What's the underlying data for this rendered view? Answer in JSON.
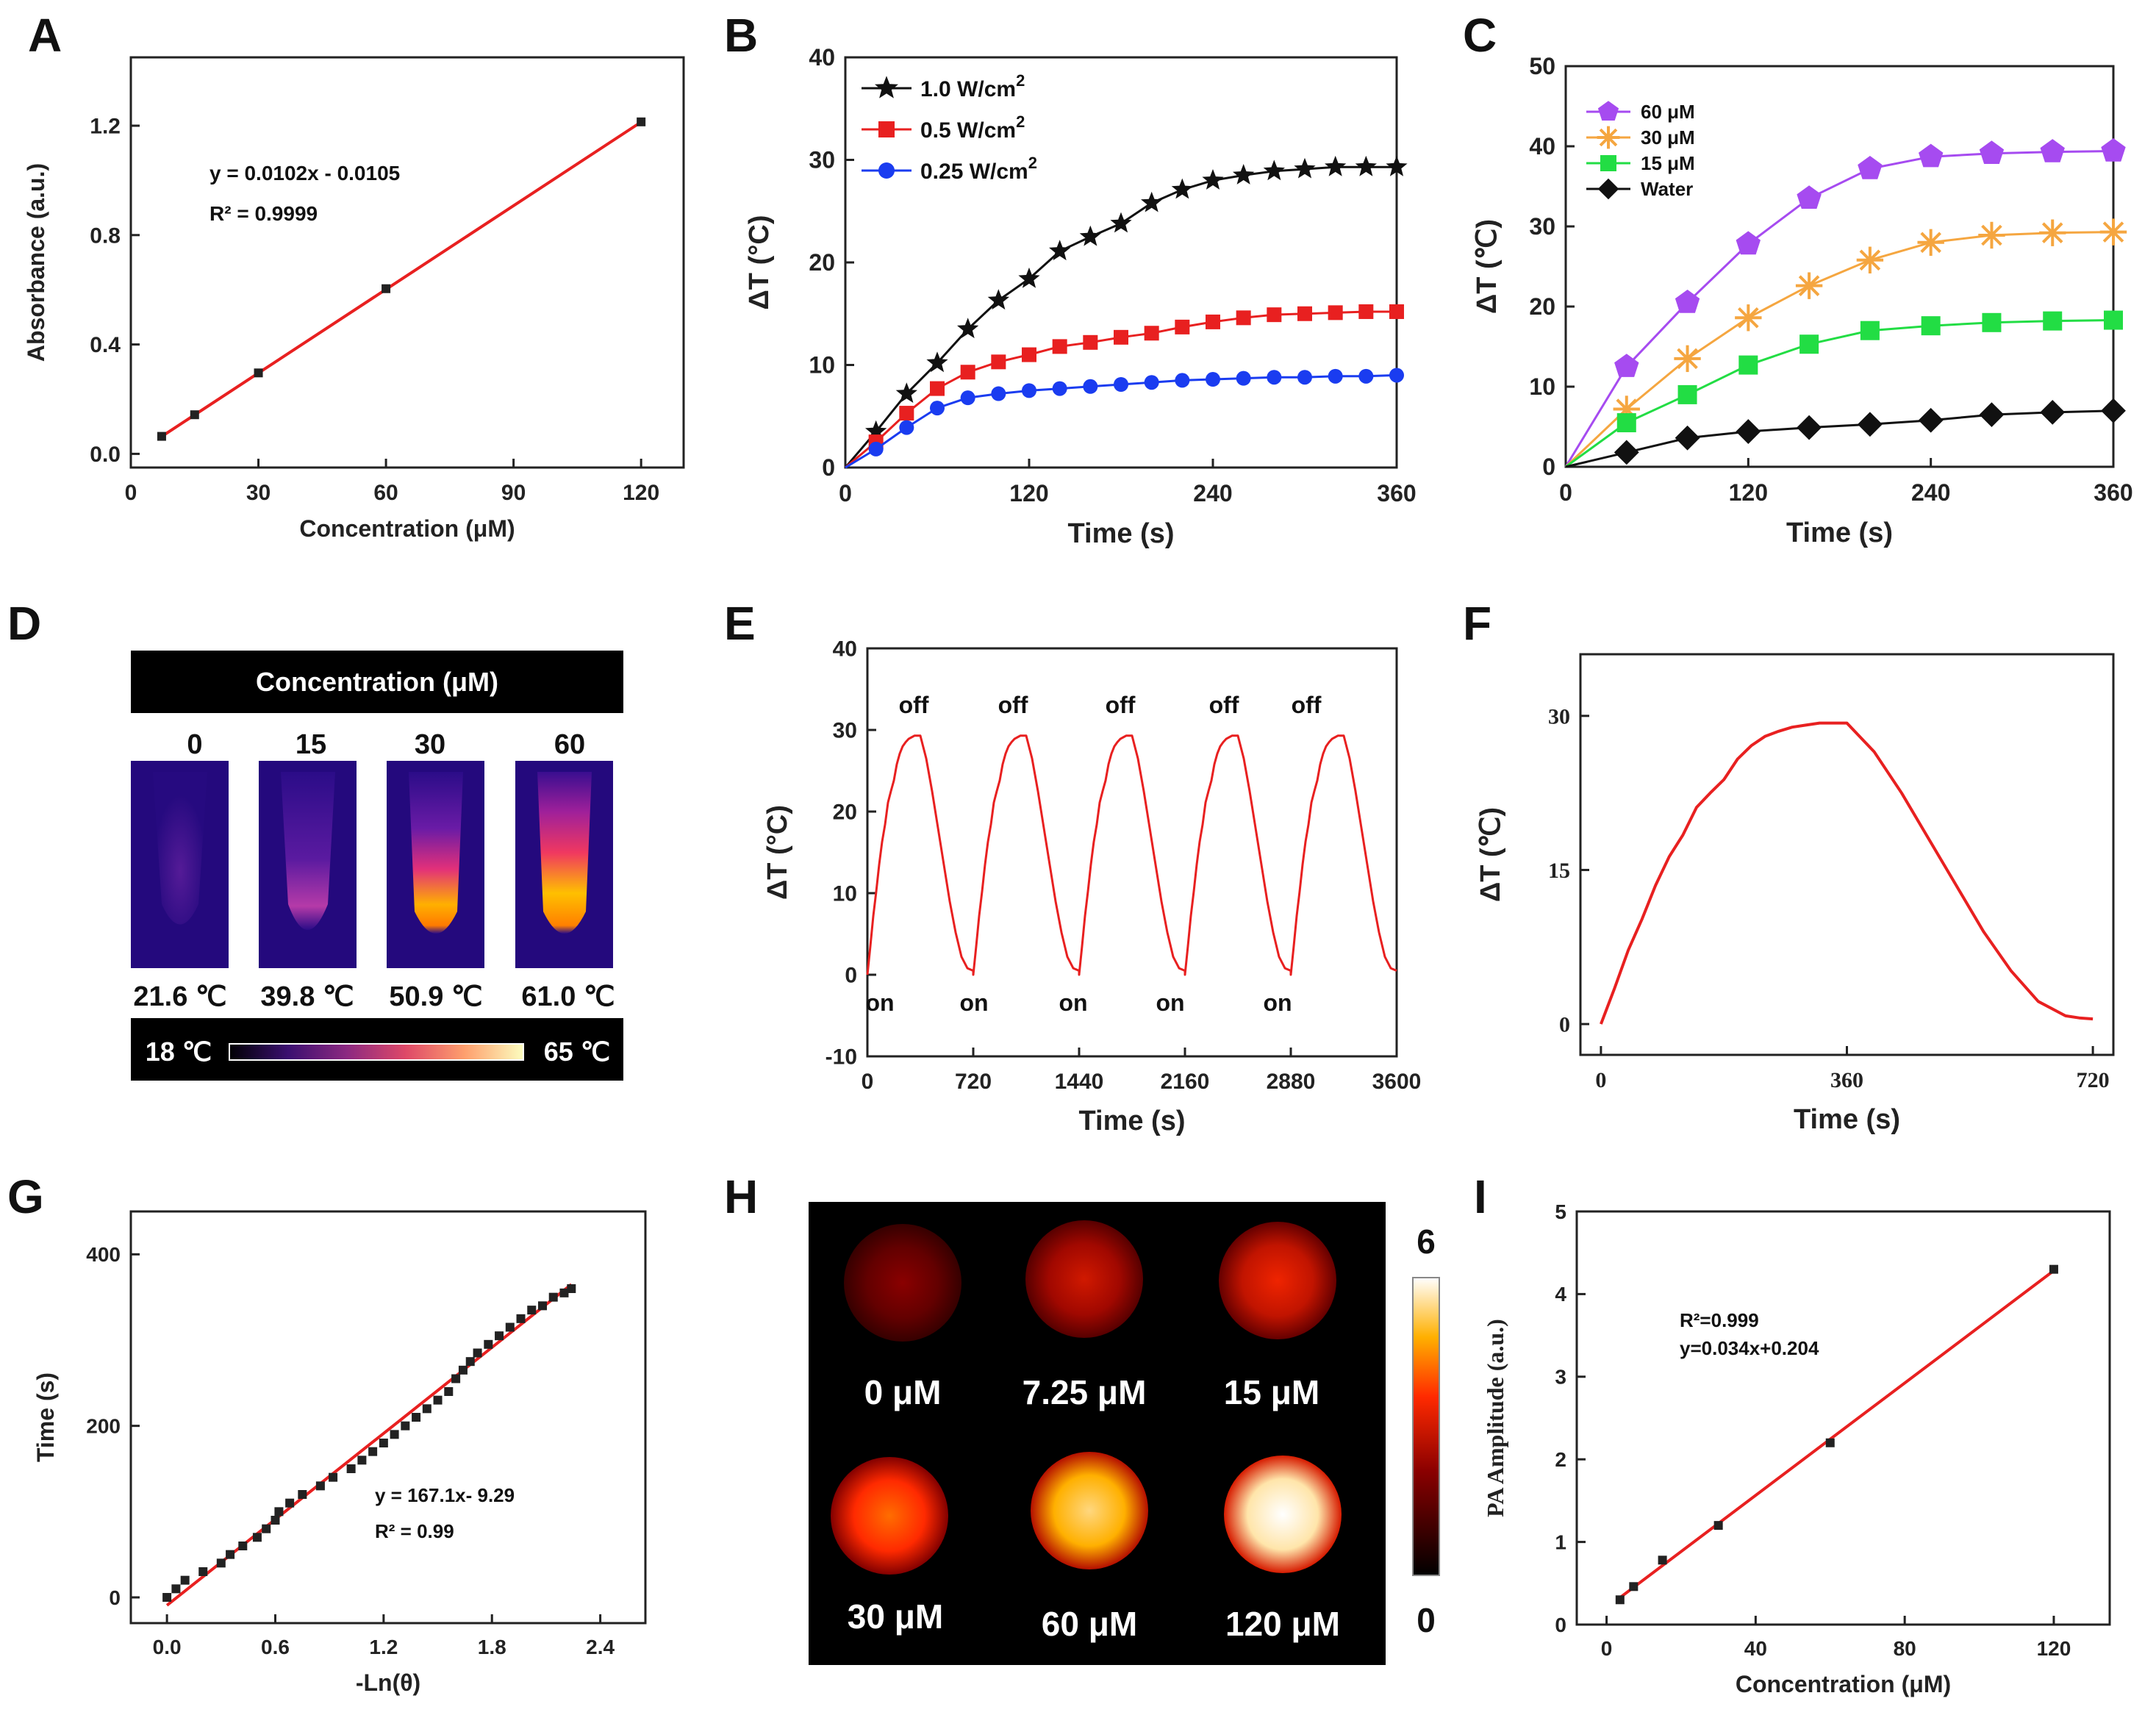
{
  "colors": {
    "black": "#111111",
    "red": "#e82020",
    "blue": "#1a3cf0",
    "purple": "#a64bf0",
    "orange": "#f5a640",
    "green": "#22dd44"
  },
  "chart_data": [
    {
      "id": "A",
      "type": "scatter",
      "panel": "A",
      "title": "",
      "xlabel": "Concentration (μM)",
      "ylabel": "Absorbance (a.u.)",
      "xlim": [
        0,
        130
      ],
      "ylim": [
        -0.05,
        1.45
      ],
      "xticks": [
        0,
        30,
        60,
        90,
        120
      ],
      "yticks": [
        0.0,
        0.4,
        0.8,
        1.2
      ],
      "xtick_labels": [
        "0",
        "30",
        "60",
        "90",
        "120"
      ],
      "ytick_labels": [
        "0.0",
        "0.4",
        "0.8",
        "1.2"
      ],
      "series": [
        {
          "name": "data",
          "x": [
            7.25,
            15,
            30,
            60,
            120
          ],
          "y": [
            0.064,
            0.143,
            0.296,
            0.604,
            1.214
          ]
        }
      ],
      "fit": {
        "slope": 0.0102,
        "intercept": -0.0105,
        "x_range": [
          7.25,
          120
        ]
      },
      "annotations": [
        "y = 0.0102x - 0.0105",
        "R² = 0.9999"
      ]
    },
    {
      "id": "B",
      "type": "line",
      "panel": "B",
      "title": "",
      "xlabel": "Time (s)",
      "ylabel": "ΔT (°C)",
      "xlim": [
        0,
        360
      ],
      "ylim": [
        0,
        40
      ],
      "xticks": [
        0,
        120,
        240,
        360
      ],
      "yticks": [
        0,
        10,
        20,
        30,
        40
      ],
      "xtick_labels": [
        "0",
        "120",
        "240",
        "360"
      ],
      "ytick_labels": [
        "0",
        "10",
        "20",
        "30",
        "40"
      ],
      "x": [
        0,
        20,
        40,
        60,
        80,
        100,
        120,
        140,
        160,
        180,
        200,
        220,
        240,
        260,
        280,
        300,
        320,
        340,
        360
      ],
      "series": [
        {
          "name": "1.0 W/cm²",
          "color": "black",
          "marker": "star",
          "values": [
            0,
            3.5,
            7.2,
            10.2,
            13.5,
            16.3,
            18.4,
            21.1,
            22.5,
            23.8,
            25.8,
            27.1,
            28.0,
            28.5,
            28.9,
            29.1,
            29.3,
            29.3,
            29.3
          ]
        },
        {
          "name": "0.5 W/cm²",
          "color": "red",
          "marker": "square",
          "values": [
            0,
            2.5,
            5.3,
            7.7,
            9.3,
            10.3,
            11.0,
            11.8,
            12.2,
            12.7,
            13.1,
            13.7,
            14.2,
            14.6,
            14.9,
            15.0,
            15.1,
            15.2,
            15.2
          ]
        },
        {
          "name": "0.25 W/cm²",
          "color": "blue",
          "marker": "circle",
          "values": [
            0,
            1.8,
            3.9,
            5.8,
            6.8,
            7.2,
            7.5,
            7.7,
            7.9,
            8.1,
            8.3,
            8.5,
            8.6,
            8.7,
            8.8,
            8.8,
            8.9,
            8.9,
            9.0
          ]
        }
      ],
      "legend_labels": [
        "1.0 W/cm",
        "0.5 W/cm",
        "0.25 W/cm"
      ],
      "legend_sup": "2"
    },
    {
      "id": "C",
      "type": "line",
      "panel": "C",
      "title": "",
      "xlabel": "Time (s)",
      "ylabel": "ΔT (℃)",
      "xlim": [
        0,
        360
      ],
      "ylim": [
        0,
        50
      ],
      "xticks": [
        0,
        120,
        240,
        360
      ],
      "yticks": [
        0,
        10,
        20,
        30,
        40,
        50
      ],
      "xtick_labels": [
        "0",
        "120",
        "240",
        "360"
      ],
      "ytick_labels": [
        "0",
        "10",
        "20",
        "30",
        "40",
        "50"
      ],
      "x": [
        0,
        40,
        80,
        120,
        160,
        200,
        240,
        280,
        320,
        360
      ],
      "series": [
        {
          "name": "60 μM",
          "color": "purple",
          "marker": "pentagon",
          "values": [
            0,
            12.5,
            20.5,
            27.8,
            33.5,
            37.2,
            38.7,
            39.1,
            39.3,
            39.4
          ]
        },
        {
          "name": "30 μM",
          "color": "orange",
          "marker": "asterisk",
          "values": [
            0,
            7.2,
            13.5,
            18.6,
            22.6,
            25.8,
            28.0,
            28.9,
            29.2,
            29.3
          ]
        },
        {
          "name": "15 μM",
          "color": "green",
          "marker": "square",
          "values": [
            0,
            5.5,
            9.0,
            12.7,
            15.3,
            17.0,
            17.6,
            18.0,
            18.2,
            18.3
          ]
        },
        {
          "name": "Water",
          "color": "black",
          "marker": "diamond",
          "values": [
            0,
            1.8,
            3.6,
            4.4,
            4.9,
            5.3,
            5.8,
            6.5,
            6.8,
            7.0
          ]
        }
      ]
    },
    {
      "id": "E",
      "type": "line",
      "panel": "E",
      "title": "",
      "xlabel": "Time (s)",
      "ylabel": "ΔT (°C)",
      "xlim": [
        0,
        3600
      ],
      "ylim": [
        -10,
        40
      ],
      "xticks": [
        0,
        720,
        1440,
        2160,
        2880,
        3600
      ],
      "yticks": [
        -10,
        0,
        10,
        20,
        30,
        40
      ],
      "xtick_labels": [
        "0",
        "720",
        "1440",
        "2160",
        "2880",
        "3600"
      ],
      "ytick_labels": [
        "-10",
        "0",
        "10",
        "20",
        "30",
        "40"
      ],
      "cycle_profile": {
        "x": [
          0,
          20,
          40,
          60,
          80,
          100,
          120,
          140,
          160,
          180,
          200,
          220,
          240,
          260,
          280,
          300,
          320,
          340,
          360,
          400,
          440,
          480,
          520,
          560,
          600,
          640,
          680,
          720
        ],
        "y": [
          0,
          3.5,
          7.2,
          10.2,
          13.5,
          16.3,
          18.4,
          21.1,
          22.5,
          23.8,
          25.8,
          27.1,
          28.0,
          28.5,
          28.9,
          29.1,
          29.3,
          29.3,
          29.3,
          26.5,
          22.5,
          18.0,
          13.5,
          9.0,
          5.2,
          2.2,
          0.8,
          0.5
        ]
      },
      "cycles": 5,
      "annotations": {
        "off": [
          "off",
          "off",
          "off",
          "off",
          "off"
        ],
        "on": [
          "on",
          "on",
          "on",
          "on",
          "on"
        ]
      }
    },
    {
      "id": "F",
      "type": "line",
      "panel": "F",
      "title": "",
      "xlabel": "Time (s)",
      "ylabel": "ΔT (℃)",
      "xlim": [
        -30,
        750
      ],
      "ylim": [
        -3,
        36
      ],
      "xticks": [
        0,
        360,
        720
      ],
      "yticks": [
        0,
        15,
        30
      ],
      "xtick_labels": [
        "0",
        "360",
        "720"
      ],
      "ytick_labels": [
        "0",
        "15",
        "30"
      ],
      "x": [
        0,
        20,
        40,
        60,
        80,
        100,
        120,
        140,
        160,
        180,
        200,
        220,
        240,
        260,
        280,
        300,
        320,
        340,
        360,
        400,
        440,
        480,
        520,
        560,
        600,
        640,
        680,
        700,
        720
      ],
      "values": [
        0,
        3.5,
        7.2,
        10.2,
        13.5,
        16.3,
        18.4,
        21.1,
        22.5,
        23.8,
        25.8,
        27.1,
        28.0,
        28.5,
        28.9,
        29.1,
        29.3,
        29.3,
        29.3,
        26.5,
        22.5,
        18.0,
        13.5,
        9.0,
        5.2,
        2.2,
        0.8,
        0.6,
        0.5
      ]
    },
    {
      "id": "G",
      "type": "scatter",
      "panel": "G",
      "title": "",
      "xlabel": "-Ln(θ)",
      "ylabel": "Time (s)",
      "xlim": [
        -0.2,
        2.65
      ],
      "ylim": [
        -30,
        450
      ],
      "xticks": [
        0.0,
        0.6,
        1.2,
        1.8,
        2.4
      ],
      "yticks": [
        0,
        200,
        400
      ],
      "xtick_labels": [
        "0.0",
        "0.6",
        "1.2",
        "1.8",
        "2.4"
      ],
      "ytick_labels": [
        "0",
        "200",
        "400"
      ],
      "series": [
        {
          "name": "data",
          "x": [
            0.0,
            0.05,
            0.1,
            0.2,
            0.3,
            0.35,
            0.42,
            0.5,
            0.55,
            0.6,
            0.62,
            0.68,
            0.75,
            0.85,
            0.92,
            1.02,
            1.08,
            1.14,
            1.2,
            1.26,
            1.32,
            1.38,
            1.44,
            1.5,
            1.56,
            1.6,
            1.64,
            1.68,
            1.72,
            1.78,
            1.84,
            1.9,
            1.96,
            2.02,
            2.08,
            2.14,
            2.2,
            2.24
          ],
          "y": [
            0,
            10,
            20,
            30,
            40,
            50,
            60,
            70,
            80,
            90,
            100,
            110,
            120,
            130,
            140,
            150,
            160,
            170,
            180,
            190,
            200,
            210,
            220,
            230,
            240,
            255,
            265,
            275,
            285,
            295,
            305,
            315,
            325,
            335,
            340,
            350,
            355,
            360
          ]
        }
      ],
      "fit": {
        "slope": 167.1,
        "intercept": -9.29,
        "x_range": [
          0.0,
          2.24
        ]
      },
      "annotations": [
        "y = 167.1x- 9.29",
        "R² = 0.99"
      ]
    },
    {
      "id": "I",
      "type": "scatter",
      "panel": "I",
      "title": "",
      "xlabel": "Concentration (μM)",
      "ylabel": "PA Amplitude (a.u.)",
      "xlim": [
        -8,
        135
      ],
      "ylim": [
        0,
        5
      ],
      "xticks": [
        0,
        40,
        80,
        120
      ],
      "yticks": [
        0,
        1,
        2,
        3,
        4,
        5
      ],
      "xtick_labels": [
        "0",
        "40",
        "80",
        "120"
      ],
      "ytick_labels": [
        "0",
        "1",
        "2",
        "3",
        "4",
        "5"
      ],
      "series": [
        {
          "name": "data",
          "x": [
            3.6,
            7.25,
            15,
            30,
            60,
            120
          ],
          "y": [
            0.3,
            0.46,
            0.78,
            1.2,
            2.2,
            4.3
          ]
        }
      ],
      "fit": {
        "slope": 0.034,
        "intercept": 0.204,
        "x_range": [
          3.6,
          120
        ]
      },
      "annotations": [
        "R²=0.999",
        "y=0.034x+0.204"
      ]
    }
  ],
  "panel_letters": [
    "A",
    "B",
    "C",
    "D",
    "E",
    "F",
    "G",
    "H",
    "I"
  ],
  "panel_d": {
    "header": "Concentration (μM)",
    "concentrations": [
      "0",
      "15",
      "30",
      "60"
    ],
    "temperatures": [
      "21.6 ℃",
      "39.8 ℃",
      "50.9 ℃",
      "61.0 ℃"
    ],
    "scale_min": "18 ℃",
    "scale_max": "65 ℃"
  },
  "panel_h": {
    "labels": [
      "0 μM",
      "7.25 μM",
      "15 μM",
      "30 μM",
      "60 μM",
      "120 μM"
    ],
    "intensity": [
      1.5,
      2.4,
      2.8,
      3.6,
      4.8,
      5.6
    ],
    "scale_max": "6",
    "scale_min": "0"
  }
}
